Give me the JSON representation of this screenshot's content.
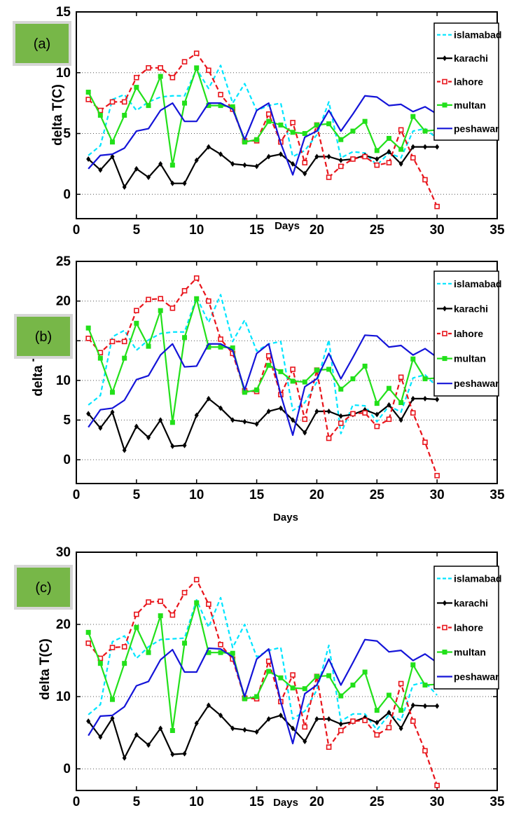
{
  "panel_tags": [
    "(a)",
    "(b)",
    "(c)"
  ],
  "legend_labels": [
    "islamabad",
    "karachi",
    "lahore",
    "multan",
    "peshawar"
  ],
  "series_colors": {
    "islamabad": "#00e5ff",
    "karachi": "#000000",
    "lahore": "#e8141b",
    "multan": "#22e01a",
    "peshawar": "#1414d8"
  },
  "chart_data": [
    {
      "type": "line",
      "xlabel": "Days",
      "ylabel": "delta T(C)",
      "xlim": [
        0,
        35
      ],
      "ylim": [
        -2,
        15
      ],
      "x_ticks": [
        0,
        5,
        10,
        15,
        20,
        25,
        30,
        35
      ],
      "y_ticks": [
        0,
        5,
        10,
        15
      ],
      "grid": "dotted horizontal",
      "legend": "top-right",
      "x": [
        1,
        2,
        3,
        4,
        5,
        6,
        7,
        8,
        9,
        10,
        11,
        12,
        13,
        14,
        15,
        16,
        17,
        18,
        19,
        20,
        21,
        22,
        23,
        24,
        25,
        26,
        27,
        28,
        29,
        30
      ],
      "series": [
        {
          "name": "islamabad",
          "values": [
            3.2,
            4.0,
            7.8,
            8.2,
            6.9,
            7.6,
            8.0,
            8.1,
            8.1,
            10.3,
            8.7,
            10.6,
            7.5,
            9.1,
            6.9,
            7.3,
            7.5,
            3.1,
            3.6,
            4.9,
            7.6,
            3.0,
            3.5,
            3.4,
            2.4,
            3.4,
            3.0,
            5.2,
            5.4,
            4.6
          ]
        },
        {
          "name": "karachi",
          "values": [
            2.9,
            2.0,
            3.1,
            0.6,
            2.1,
            1.4,
            2.5,
            0.9,
            0.9,
            2.8,
            3.9,
            3.3,
            2.5,
            2.4,
            2.3,
            3.1,
            3.3,
            2.5,
            1.7,
            3.1,
            3.1,
            2.8,
            2.9,
            3.2,
            2.9,
            3.5,
            2.5,
            3.9,
            3.9,
            3.9
          ]
        },
        {
          "name": "lahore",
          "values": [
            7.8,
            6.9,
            7.6,
            7.6,
            9.6,
            10.4,
            10.4,
            9.6,
            10.9,
            11.6,
            10.2,
            8.2,
            7.0,
            4.4,
            4.4,
            6.6,
            4.3,
            5.9,
            2.6,
            5.7,
            1.4,
            2.3,
            2.9,
            3.1,
            2.4,
            2.6,
            5.3,
            3.0,
            1.2,
            -1.0
          ]
        },
        {
          "name": "multan",
          "values": [
            8.4,
            6.5,
            4.3,
            6.5,
            8.8,
            7.3,
            9.7,
            2.4,
            7.5,
            10.4,
            7.3,
            7.3,
            7.2,
            4.3,
            4.5,
            6.0,
            5.7,
            5.1,
            5.0,
            5.7,
            5.8,
            4.5,
            5.2,
            6.0,
            3.6,
            4.6,
            3.7,
            6.4,
            5.2,
            5.3
          ]
        },
        {
          "name": "peshawar",
          "values": [
            2.1,
            3.2,
            3.3,
            3.8,
            5.2,
            5.4,
            6.9,
            7.5,
            6.0,
            6.0,
            7.5,
            7.5,
            7.0,
            4.5,
            6.9,
            7.5,
            4.2,
            1.6,
            4.7,
            5.2,
            6.9,
            5.2,
            6.6,
            8.1,
            8.0,
            7.3,
            7.4,
            6.8,
            7.2,
            6.6
          ]
        }
      ]
    },
    {
      "type": "line",
      "xlabel": "Days",
      "ylabel": "delta T",
      "xlim": [
        0,
        35
      ],
      "ylim": [
        -3,
        25
      ],
      "x_ticks": [
        0,
        5,
        10,
        15,
        20,
        25,
        30,
        35
      ],
      "y_ticks": [
        0,
        5,
        10,
        15,
        20,
        25
      ],
      "grid": "dotted horizontal",
      "legend": "top-right",
      "x": [
        1,
        2,
        3,
        4,
        5,
        6,
        7,
        8,
        9,
        10,
        11,
        12,
        13,
        14,
        15,
        16,
        17,
        18,
        19,
        20,
        21,
        22,
        23,
        24,
        25,
        26,
        27,
        28,
        29,
        30
      ],
      "series": [
        {
          "name": "islamabad",
          "values": [
            6.9,
            8.1,
            15.5,
            16.3,
            13.8,
            15.1,
            15.9,
            16.1,
            16.1,
            20.5,
            17.3,
            20.8,
            14.9,
            17.6,
            13.7,
            14.6,
            14.9,
            6.2,
            7.2,
            9.8,
            15.1,
            3.3,
            6.9,
            6.8,
            4.8,
            6.8,
            6.0,
            10.3,
            10.7,
            9.2
          ]
        },
        {
          "name": "karachi",
          "values": [
            5.8,
            4.0,
            6.0,
            1.2,
            4.2,
            2.8,
            5.0,
            1.7,
            1.8,
            5.6,
            7.7,
            6.5,
            5.0,
            4.8,
            4.5,
            6.1,
            6.5,
            5.0,
            3.4,
            6.1,
            6.1,
            5.5,
            5.7,
            6.3,
            5.7,
            6.9,
            5.0,
            7.7,
            7.7,
            7.6
          ]
        },
        {
          "name": "lahore",
          "values": [
            15.3,
            13.5,
            14.9,
            14.9,
            18.8,
            20.2,
            20.3,
            19.1,
            21.3,
            22.9,
            20.0,
            15.2,
            13.4,
            8.7,
            8.6,
            13.1,
            8.2,
            11.4,
            5.1,
            11.3,
            2.7,
            4.6,
            5.8,
            5.9,
            4.2,
            5.1,
            10.4,
            5.9,
            2.2,
            -2.0
          ]
        },
        {
          "name": "multan",
          "values": [
            16.6,
            12.8,
            8.5,
            12.8,
            17.2,
            14.3,
            18.8,
            4.7,
            15.4,
            20.3,
            14.2,
            14.2,
            14.1,
            8.5,
            8.8,
            11.9,
            11.1,
            9.9,
            9.8,
            11.3,
            11.4,
            8.9,
            10.2,
            11.8,
            7.1,
            9.0,
            7.2,
            12.7,
            10.2,
            10.3
          ]
        },
        {
          "name": "peshawar",
          "values": [
            4.1,
            6.3,
            6.5,
            7.5,
            10.1,
            10.6,
            13.2,
            14.6,
            11.7,
            11.8,
            14.6,
            14.6,
            13.8,
            8.8,
            13.4,
            14.6,
            8.2,
            3.1,
            9.2,
            10.2,
            13.4,
            10.2,
            12.9,
            15.7,
            15.6,
            14.2,
            14.4,
            13.2,
            14.0,
            12.9
          ]
        }
      ]
    },
    {
      "type": "line",
      "xlabel": "Days",
      "ylabel": "delta T(C)",
      "xlim": [
        0,
        35
      ],
      "ylim": [
        -3,
        30
      ],
      "x_ticks": [
        0,
        5,
        10,
        15,
        20,
        25,
        30,
        35
      ],
      "y_ticks": [
        0,
        10,
        20,
        30
      ],
      "grid": "dotted horizontal",
      "legend": "top-right",
      "x": [
        1,
        2,
        3,
        4,
        5,
        6,
        7,
        8,
        9,
        10,
        11,
        12,
        13,
        14,
        15,
        16,
        17,
        18,
        19,
        20,
        21,
        22,
        23,
        24,
        25,
        26,
        27,
        28,
        29,
        30
      ],
      "series": [
        {
          "name": "islamabad",
          "values": [
            7.5,
            8.9,
            17.6,
            18.4,
            15.3,
            16.9,
            17.9,
            18.0,
            18.1,
            23.4,
            19.6,
            23.7,
            16.8,
            20.0,
            15.5,
            16.4,
            16.8,
            6.9,
            8.0,
            10.9,
            17.1,
            6.6,
            7.6,
            7.6,
            5.4,
            7.5,
            6.7,
            11.6,
            12.0,
            10.2
          ]
        },
        {
          "name": "karachi",
          "values": [
            6.6,
            4.4,
            7.0,
            1.5,
            4.7,
            3.3,
            5.6,
            2.0,
            2.1,
            6.3,
            8.8,
            7.4,
            5.6,
            5.4,
            5.1,
            6.9,
            7.4,
            5.6,
            3.8,
            6.9,
            6.9,
            6.2,
            6.5,
            7.1,
            6.4,
            7.8,
            5.6,
            8.8,
            8.7,
            8.7
          ]
        },
        {
          "name": "lahore",
          "values": [
            17.4,
            15.3,
            16.8,
            16.9,
            21.4,
            23.1,
            23.2,
            21.3,
            24.4,
            26.2,
            22.8,
            17.2,
            15.2,
            9.8,
            9.7,
            14.9,
            9.3,
            13.0,
            5.8,
            12.8,
            3.0,
            5.3,
            6.6,
            6.7,
            4.7,
            5.7,
            11.8,
            6.6,
            2.5,
            -2.3
          ]
        },
        {
          "name": "multan",
          "values": [
            18.9,
            14.6,
            9.6,
            14.6,
            19.6,
            16.1,
            21.2,
            5.3,
            17.4,
            23.0,
            16.1,
            16.1,
            16.0,
            9.7,
            10.0,
            13.5,
            12.6,
            11.2,
            11.1,
            12.8,
            12.9,
            10.1,
            11.6,
            13.4,
            8.1,
            10.2,
            8.1,
            14.4,
            11.6,
            11.7
          ]
        },
        {
          "name": "peshawar",
          "values": [
            4.6,
            7.3,
            7.4,
            8.6,
            11.5,
            12.1,
            15.1,
            16.5,
            13.4,
            13.4,
            16.7,
            16.6,
            15.5,
            10.0,
            15.2,
            16.6,
            9.3,
            3.5,
            10.4,
            11.6,
            15.2,
            11.6,
            14.7,
            17.9,
            17.7,
            16.2,
            16.4,
            15.0,
            15.9,
            14.7
          ]
        }
      ]
    }
  ]
}
